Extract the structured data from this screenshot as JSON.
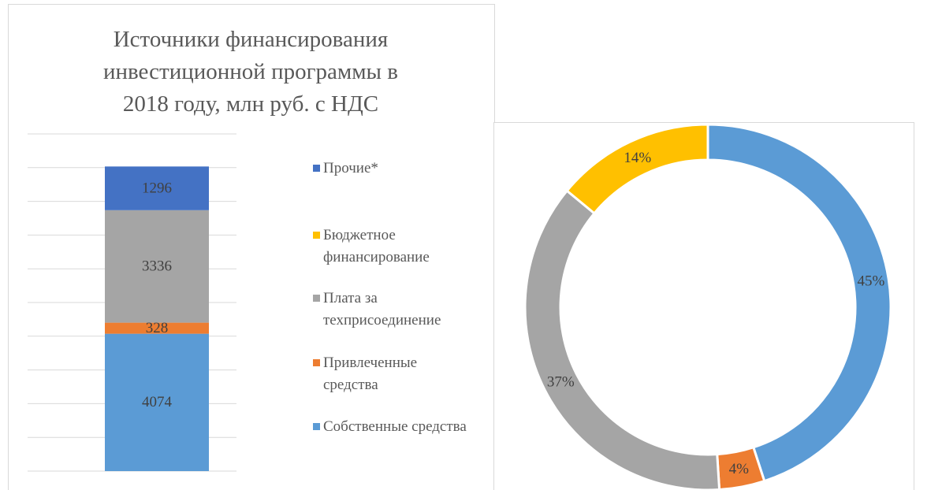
{
  "chart_data": [
    {
      "type": "stacked-bar",
      "title": "Источники финансирования инвестиционной программы в 2018 году, млн руб. с НДС",
      "categories": [
        null
      ],
      "series": [
        {
          "name": "Собственные средства",
          "color": "#5b9bd5",
          "values": [
            4074
          ]
        },
        {
          "name": "Привлеченные средства",
          "color": "#ed7d31",
          "values": [
            328
          ]
        },
        {
          "name": "Плата за техприсоединение",
          "color": "#a5a5a5",
          "values": [
            3336
          ]
        },
        {
          "name": "Бюджетное финансирование",
          "color": "#ffc000",
          "values": [
            null
          ]
        },
        {
          "name": "Прочие*",
          "color": "#4472c4",
          "values": [
            1296
          ]
        }
      ],
      "ylim": [
        0,
        10000
      ],
      "yticks": [
        0,
        1000,
        2000,
        3000,
        4000,
        5000,
        6000,
        7000,
        8000,
        9000,
        10000
      ],
      "grid": true,
      "legend": "right"
    },
    {
      "type": "donut",
      "values": [
        45,
        4,
        37,
        14
      ],
      "value_labels": [
        "45%",
        "4%",
        "37%",
        "14%"
      ],
      "colors": [
        "#5b9bd5",
        "#ed7d31",
        "#a5a5a5",
        "#ffc000"
      ]
    }
  ]
}
